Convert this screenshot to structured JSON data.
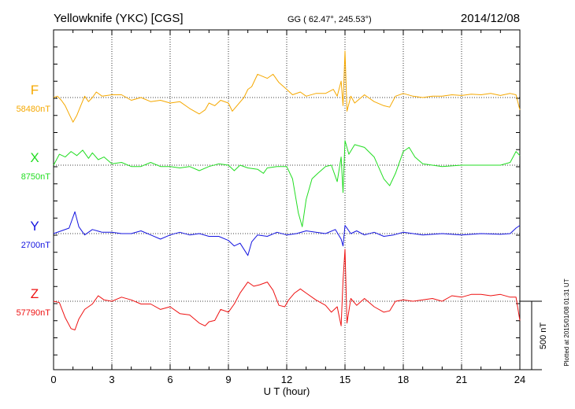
{
  "chart_data": {
    "type": "line",
    "title": "Yellowknife (YKC)  [CGS]",
    "coords": "GG ( 62.47°, 245.53°)",
    "date": "2014/12/08",
    "xlabel": "U T (hour)",
    "xlim": [
      0,
      24
    ],
    "xticks": [
      "0",
      "3",
      "6",
      "9",
      "12",
      "15",
      "18",
      "21",
      "24"
    ],
    "scale_label": "500 nT",
    "scale_nT": 500,
    "plotted_note": "Plotted at 2015/01/08 01:31  UT",
    "grid": true,
    "series": [
      {
        "name": "F",
        "baseline": "58480nT",
        "color": "#f5a800",
        "points": [
          [
            0.0,
            0
          ],
          [
            0.2,
            10
          ],
          [
            0.4,
            -20
          ],
          [
            0.6,
            -60
          ],
          [
            0.8,
            -120
          ],
          [
            1.0,
            -180
          ],
          [
            1.2,
            -130
          ],
          [
            1.4,
            -60
          ],
          [
            1.6,
            10
          ],
          [
            1.8,
            -30
          ],
          [
            2.0,
            0
          ],
          [
            2.2,
            40
          ],
          [
            2.5,
            10
          ],
          [
            3.0,
            20
          ],
          [
            3.5,
            20
          ],
          [
            4.0,
            -20
          ],
          [
            4.5,
            0
          ],
          [
            5.0,
            -30
          ],
          [
            5.5,
            -20
          ],
          [
            6.0,
            -40
          ],
          [
            6.5,
            -30
          ],
          [
            7.0,
            -80
          ],
          [
            7.5,
            -120
          ],
          [
            7.8,
            -90
          ],
          [
            8.0,
            -40
          ],
          [
            8.3,
            -60
          ],
          [
            8.6,
            -20
          ],
          [
            9.0,
            -40
          ],
          [
            9.2,
            -100
          ],
          [
            9.5,
            -50
          ],
          [
            9.8,
            0
          ],
          [
            10.0,
            60
          ],
          [
            10.2,
            80
          ],
          [
            10.5,
            170
          ],
          [
            11.0,
            140
          ],
          [
            11.3,
            170
          ],
          [
            11.6,
            110
          ],
          [
            12.0,
            60
          ],
          [
            12.3,
            20
          ],
          [
            12.7,
            40
          ],
          [
            13.0,
            10
          ],
          [
            13.5,
            30
          ],
          [
            14.0,
            30
          ],
          [
            14.4,
            60
          ],
          [
            14.6,
            10
          ],
          [
            14.8,
            120
          ],
          [
            14.9,
            -60
          ],
          [
            15.0,
            340
          ],
          [
            15.1,
            -100
          ],
          [
            15.3,
            10
          ],
          [
            15.5,
            -40
          ],
          [
            16.0,
            20
          ],
          [
            16.5,
            -30
          ],
          [
            17.0,
            -60
          ],
          [
            17.3,
            -70
          ],
          [
            17.6,
            10
          ],
          [
            18.0,
            30
          ],
          [
            18.5,
            10
          ],
          [
            19.0,
            0
          ],
          [
            19.5,
            10
          ],
          [
            20.0,
            10
          ],
          [
            20.5,
            20
          ],
          [
            21.0,
            15
          ],
          [
            21.5,
            25
          ],
          [
            22.0,
            20
          ],
          [
            22.5,
            30
          ],
          [
            23.0,
            15
          ],
          [
            23.5,
            30
          ],
          [
            23.8,
            20
          ],
          [
            24.0,
            -90
          ]
        ]
      },
      {
        "name": "X",
        "baseline": "8750nT",
        "color": "#22dd22",
        "points": [
          [
            0.0,
            0
          ],
          [
            0.3,
            80
          ],
          [
            0.6,
            60
          ],
          [
            0.9,
            100
          ],
          [
            1.2,
            70
          ],
          [
            1.5,
            110
          ],
          [
            1.8,
            50
          ],
          [
            2.0,
            90
          ],
          [
            2.3,
            40
          ],
          [
            2.6,
            60
          ],
          [
            3.0,
            10
          ],
          [
            3.5,
            20
          ],
          [
            4.0,
            -10
          ],
          [
            4.5,
            -10
          ],
          [
            5.0,
            20
          ],
          [
            5.5,
            -10
          ],
          [
            6.0,
            -10
          ],
          [
            6.5,
            -20
          ],
          [
            7.0,
            -10
          ],
          [
            7.5,
            -40
          ],
          [
            8.0,
            -10
          ],
          [
            8.5,
            10
          ],
          [
            9.0,
            0
          ],
          [
            9.3,
            -40
          ],
          [
            9.6,
            0
          ],
          [
            10.0,
            -20
          ],
          [
            10.5,
            -30
          ],
          [
            10.8,
            -60
          ],
          [
            11.0,
            -20
          ],
          [
            11.5,
            -10
          ],
          [
            12.0,
            -10
          ],
          [
            12.3,
            -100
          ],
          [
            12.6,
            -350
          ],
          [
            12.8,
            -450
          ],
          [
            13.0,
            -250
          ],
          [
            13.3,
            -100
          ],
          [
            13.6,
            -60
          ],
          [
            14.0,
            -10
          ],
          [
            14.3,
            0
          ],
          [
            14.6,
            -120
          ],
          [
            14.8,
            60
          ],
          [
            14.9,
            -200
          ],
          [
            15.0,
            180
          ],
          [
            15.2,
            80
          ],
          [
            15.5,
            150
          ],
          [
            16.0,
            130
          ],
          [
            16.5,
            60
          ],
          [
            17.0,
            -100
          ],
          [
            17.3,
            -150
          ],
          [
            17.6,
            -60
          ],
          [
            18.0,
            100
          ],
          [
            18.3,
            130
          ],
          [
            18.6,
            60
          ],
          [
            19.0,
            10
          ],
          [
            19.5,
            0
          ],
          [
            20.0,
            -10
          ],
          [
            21.0,
            0
          ],
          [
            22.0,
            0
          ],
          [
            23.0,
            0
          ],
          [
            23.5,
            20
          ],
          [
            23.8,
            100
          ],
          [
            24.0,
            70
          ]
        ]
      },
      {
        "name": "Y",
        "baseline": "2700nT",
        "color": "#1414e0",
        "points": [
          [
            0.0,
            0
          ],
          [
            0.4,
            20
          ],
          [
            0.8,
            40
          ],
          [
            1.1,
            160
          ],
          [
            1.3,
            50
          ],
          [
            1.6,
            -10
          ],
          [
            2.0,
            30
          ],
          [
            2.5,
            10
          ],
          [
            3.0,
            10
          ],
          [
            3.5,
            0
          ],
          [
            4.0,
            0
          ],
          [
            4.5,
            20
          ],
          [
            5.0,
            -10
          ],
          [
            5.5,
            -40
          ],
          [
            6.0,
            -10
          ],
          [
            6.5,
            10
          ],
          [
            7.0,
            -10
          ],
          [
            7.5,
            0
          ],
          [
            8.0,
            -20
          ],
          [
            8.5,
            -20
          ],
          [
            9.0,
            -50
          ],
          [
            9.3,
            -90
          ],
          [
            9.6,
            -70
          ],
          [
            10.0,
            -160
          ],
          [
            10.2,
            -60
          ],
          [
            10.5,
            -10
          ],
          [
            11.0,
            -20
          ],
          [
            11.5,
            10
          ],
          [
            12.0,
            -10
          ],
          [
            12.5,
            0
          ],
          [
            13.0,
            20
          ],
          [
            13.5,
            10
          ],
          [
            14.0,
            0
          ],
          [
            14.5,
            30
          ],
          [
            14.8,
            -40
          ],
          [
            14.9,
            -90
          ],
          [
            15.0,
            60
          ],
          [
            15.3,
            0
          ],
          [
            15.6,
            20
          ],
          [
            16.0,
            -10
          ],
          [
            16.5,
            10
          ],
          [
            17.0,
            -20
          ],
          [
            17.5,
            -10
          ],
          [
            18.0,
            10
          ],
          [
            18.5,
            0
          ],
          [
            19.0,
            -10
          ],
          [
            20.0,
            0
          ],
          [
            21.0,
            -10
          ],
          [
            22.0,
            0
          ],
          [
            23.0,
            -5
          ],
          [
            23.5,
            0
          ],
          [
            23.8,
            40
          ],
          [
            24.0,
            60
          ]
        ]
      },
      {
        "name": "Z",
        "baseline": "57790nT",
        "color": "#ee1111",
        "points": [
          [
            0.0,
            0
          ],
          [
            0.3,
            -10
          ],
          [
            0.6,
            -120
          ],
          [
            0.9,
            -200
          ],
          [
            1.1,
            -210
          ],
          [
            1.3,
            -130
          ],
          [
            1.6,
            -60
          ],
          [
            2.0,
            -20
          ],
          [
            2.3,
            40
          ],
          [
            2.6,
            10
          ],
          [
            3.0,
            0
          ],
          [
            3.5,
            30
          ],
          [
            4.0,
            10
          ],
          [
            4.5,
            -20
          ],
          [
            5.0,
            -20
          ],
          [
            5.5,
            -60
          ],
          [
            6.0,
            -40
          ],
          [
            6.5,
            -90
          ],
          [
            7.0,
            -100
          ],
          [
            7.5,
            -160
          ],
          [
            7.8,
            -180
          ],
          [
            8.0,
            -150
          ],
          [
            8.3,
            -140
          ],
          [
            8.6,
            -60
          ],
          [
            9.0,
            -80
          ],
          [
            9.3,
            -20
          ],
          [
            9.6,
            60
          ],
          [
            10.0,
            140
          ],
          [
            10.3,
            110
          ],
          [
            10.6,
            120
          ],
          [
            11.0,
            140
          ],
          [
            11.3,
            80
          ],
          [
            11.6,
            -30
          ],
          [
            11.9,
            -40
          ],
          [
            12.1,
            10
          ],
          [
            12.4,
            60
          ],
          [
            12.7,
            90
          ],
          [
            13.0,
            60
          ],
          [
            13.5,
            10
          ],
          [
            14.0,
            -30
          ],
          [
            14.3,
            -80
          ],
          [
            14.6,
            -40
          ],
          [
            14.8,
            -180
          ],
          [
            14.9,
            150
          ],
          [
            15.0,
            380
          ],
          [
            15.1,
            -160
          ],
          [
            15.3,
            20
          ],
          [
            15.6,
            -30
          ],
          [
            16.0,
            20
          ],
          [
            16.5,
            -40
          ],
          [
            17.0,
            -80
          ],
          [
            17.3,
            -70
          ],
          [
            17.6,
            0
          ],
          [
            18.0,
            10
          ],
          [
            18.5,
            0
          ],
          [
            19.0,
            10
          ],
          [
            19.5,
            20
          ],
          [
            20.0,
            0
          ],
          [
            20.5,
            40
          ],
          [
            21.0,
            30
          ],
          [
            21.5,
            50
          ],
          [
            22.0,
            50
          ],
          [
            22.5,
            40
          ],
          [
            23.0,
            50
          ],
          [
            23.5,
            30
          ],
          [
            23.8,
            30
          ],
          [
            24.0,
            -140
          ]
        ]
      }
    ]
  }
}
